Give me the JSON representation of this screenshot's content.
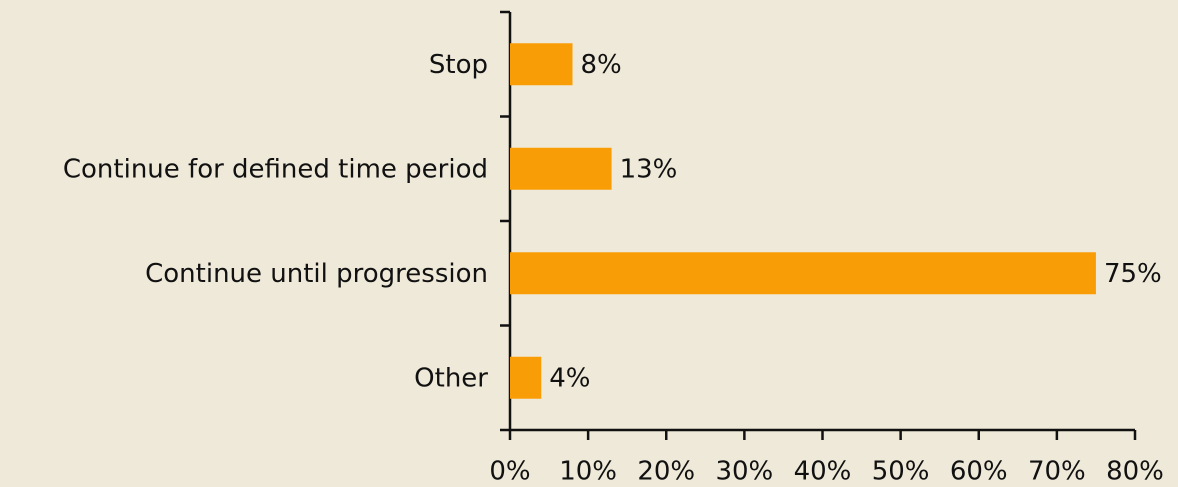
{
  "chart_data": {
    "type": "hbar",
    "categories": [
      "Stop",
      "Continue for defined time period",
      "Continue until progression",
      "Other"
    ],
    "values": [
      8,
      13,
      75,
      4
    ],
    "value_labels": [
      "8%",
      "13%",
      "75%",
      "4%"
    ],
    "color": "#f99d07",
    "xlim": [
      0,
      80
    ],
    "xticks": [
      {
        "value": 0,
        "label": "0%"
      },
      {
        "value": 10,
        "label": "10%"
      },
      {
        "value": 20,
        "label": "20%"
      },
      {
        "value": 30,
        "label": "30%"
      },
      {
        "value": 40,
        "label": "40%"
      },
      {
        "value": 50,
        "label": "50%"
      },
      {
        "value": 60,
        "label": "60%"
      },
      {
        "value": 70,
        "label": "70%"
      },
      {
        "value": 80,
        "label": "80%"
      }
    ]
  }
}
